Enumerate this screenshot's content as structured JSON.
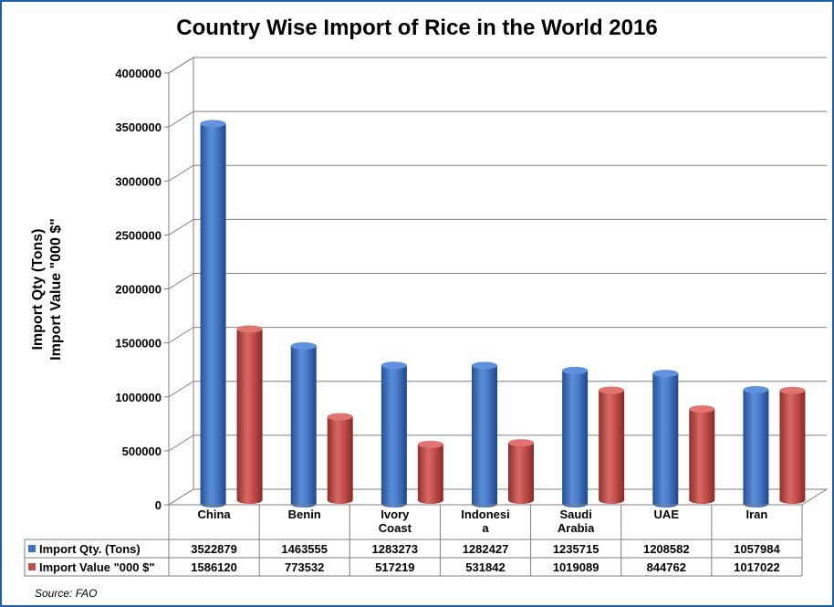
{
  "chart_data": {
    "type": "bar",
    "title": "Country Wise Import of Rice in the World 2016",
    "ylabel_lines": [
      "Import Qty (Tons)",
      "Import Value \"000 $\""
    ],
    "xlabel": "",
    "categories": [
      [
        "China"
      ],
      [
        "Benin"
      ],
      [
        "Ivory",
        "Coast"
      ],
      [
        "Indonesi",
        "a"
      ],
      [
        "Saudi",
        "Arabia"
      ],
      [
        "UAE"
      ],
      [
        "Iran"
      ]
    ],
    "series": [
      {
        "name": "Import Qty. (Tons)",
        "color": "#3d72c4",
        "values": [
          3522879,
          1463555,
          1283273,
          1282427,
          1235715,
          1208582,
          1057984
        ]
      },
      {
        "name": "Import Value \"000 $\"",
        "color": "#c0504d",
        "values": [
          1586120,
          773532,
          517219,
          531842,
          1019089,
          844762,
          1017022
        ]
      }
    ],
    "ylim": [
      0,
      4000000
    ],
    "yticks": [
      "0",
      "500000",
      "1000000",
      "1500000",
      "2000000",
      "2500000",
      "3000000",
      "3500000",
      "4000000"
    ],
    "grid": true,
    "legend": "data-table"
  },
  "source": "Source: FAO"
}
